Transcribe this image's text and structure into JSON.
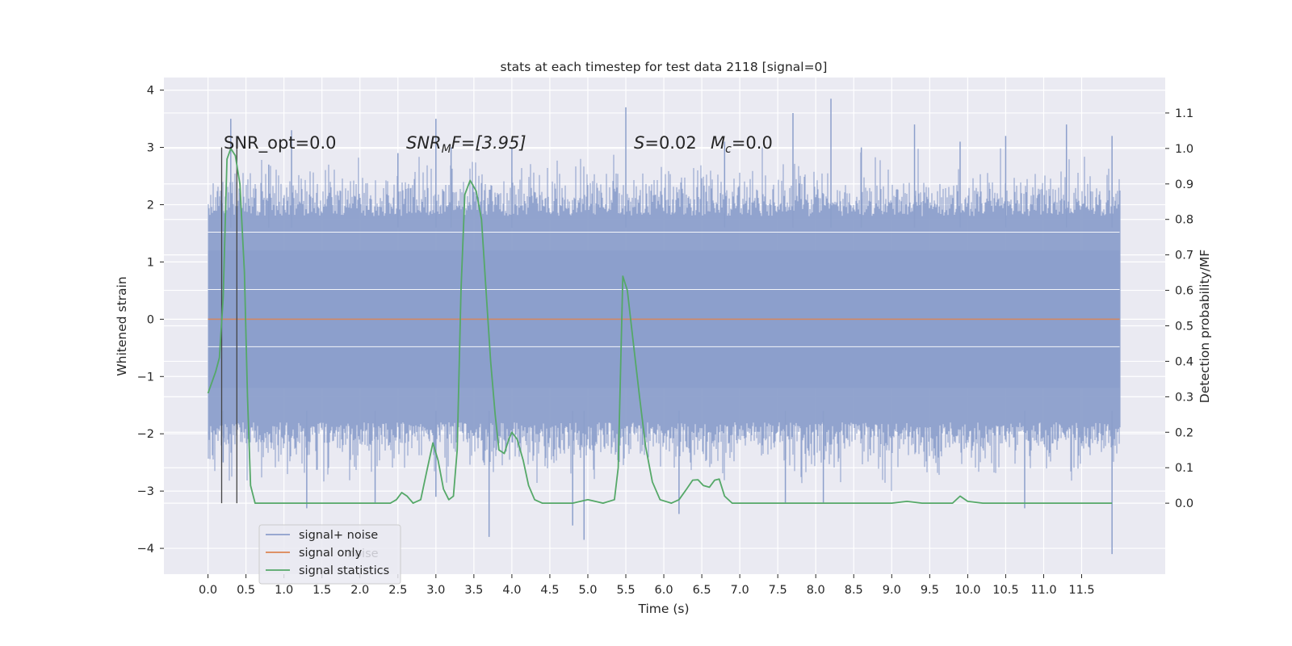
{
  "chart_data": {
    "type": "line",
    "title": "stats at each timestep for test data 2118 [signal=0]",
    "xlabel": "Time (s)",
    "ylabel_left": "Whitened strain",
    "ylabel_right": "Detection probability/MF",
    "xlim": [
      -0.58,
      12.6
    ],
    "ylim_left": [
      -4.45,
      4.22
    ],
    "ylim_right": [
      -0.2,
      1.2
    ],
    "xticks": [
      "0.0",
      "0.5",
      "1.0",
      "1.5",
      "2.0",
      "2.5",
      "3.0",
      "3.5",
      "4.0",
      "4.5",
      "5.0",
      "5.5",
      "6.0",
      "6.5",
      "7.0",
      "7.5",
      "8.0",
      "8.5",
      "9.0",
      "9.5",
      "10.0",
      "10.5",
      "11.0",
      "11.5"
    ],
    "yticks_left": [
      "4",
      "3",
      "2",
      "1",
      "0",
      "−1",
      "−2",
      "−3",
      "−4"
    ],
    "yticks_right": [
      "1.1",
      "1.0",
      "0.9",
      "0.8",
      "0.7",
      "0.6",
      "0.5",
      "0.4",
      "0.3",
      "0.2",
      "0.1",
      "0.0"
    ],
    "grid": true,
    "legend_position": "lower-left",
    "annotations": {
      "snr_opt": "SNR_opt=0.0",
      "snr_mf_main": "SNR",
      "snr_mf_sub": "M",
      "snr_mf_rest": "F=[3.95]",
      "s_main": "S",
      "s_rest": "=0.02",
      "mc_main": "M",
      "mc_sub": "c",
      "mc_rest": "=0.0"
    },
    "vertical_markers_x": [
      0.18,
      0.38
    ],
    "series": [
      {
        "name": "signal+ noise",
        "color": "#8c9fcb",
        "x_range": [
          0.0,
          12.0
        ],
        "typical_band": [
          -1.8,
          1.8
        ],
        "peak_up": [
          [
            0.3,
            3.5
          ],
          [
            0.8,
            2.7
          ],
          [
            1.1,
            3.3
          ],
          [
            2.5,
            2.9
          ],
          [
            3.0,
            3.5
          ],
          [
            3.2,
            3.0
          ],
          [
            4.0,
            3.0
          ],
          [
            5.5,
            3.7
          ],
          [
            6.8,
            3.1
          ],
          [
            7.7,
            3.6
          ],
          [
            8.2,
            3.85
          ],
          [
            8.6,
            3.0
          ],
          [
            9.3,
            3.4
          ],
          [
            9.9,
            3.1
          ],
          [
            10.5,
            3.2
          ],
          [
            11.3,
            3.4
          ],
          [
            11.9,
            3.2
          ]
        ],
        "peak_down": [
          [
            0.2,
            -2.5
          ],
          [
            1.3,
            -3.3
          ],
          [
            2.2,
            -3.2
          ],
          [
            3.0,
            -3.1
          ],
          [
            3.7,
            -3.8
          ],
          [
            4.8,
            -3.6
          ],
          [
            4.95,
            -3.85
          ],
          [
            6.2,
            -3.4
          ],
          [
            7.6,
            -3.2
          ],
          [
            8.1,
            -3.2
          ],
          [
            10.75,
            -3.3
          ],
          [
            11.9,
            -4.1
          ]
        ]
      },
      {
        "name": "signal only",
        "color": "#dd8452",
        "points": [
          [
            0.0,
            0.0
          ],
          [
            12.0,
            0.0
          ]
        ]
      },
      {
        "name": "signal statistics",
        "color": "#55a868",
        "axis": "right",
        "points": [
          [
            0.0,
            0.31
          ],
          [
            0.1,
            0.37
          ],
          [
            0.15,
            0.41
          ],
          [
            0.2,
            0.58
          ],
          [
            0.25,
            0.97
          ],
          [
            0.3,
            1.0
          ],
          [
            0.36,
            0.98
          ],
          [
            0.42,
            0.9
          ],
          [
            0.48,
            0.65
          ],
          [
            0.52,
            0.3
          ],
          [
            0.56,
            0.05
          ],
          [
            0.62,
            0.0
          ],
          [
            0.85,
            0.0
          ],
          [
            1.5,
            0.0
          ],
          [
            2.0,
            0.0
          ],
          [
            2.4,
            0.0
          ],
          [
            2.48,
            0.01
          ],
          [
            2.55,
            0.03
          ],
          [
            2.62,
            0.02
          ],
          [
            2.7,
            0.0
          ],
          [
            2.8,
            0.01
          ],
          [
            2.88,
            0.09
          ],
          [
            2.96,
            0.17
          ],
          [
            3.03,
            0.12
          ],
          [
            3.1,
            0.04
          ],
          [
            3.17,
            0.01
          ],
          [
            3.23,
            0.02
          ],
          [
            3.28,
            0.15
          ],
          [
            3.33,
            0.6
          ],
          [
            3.38,
            0.87
          ],
          [
            3.45,
            0.91
          ],
          [
            3.53,
            0.88
          ],
          [
            3.6,
            0.8
          ],
          [
            3.66,
            0.6
          ],
          [
            3.72,
            0.4
          ],
          [
            3.78,
            0.25
          ],
          [
            3.83,
            0.15
          ],
          [
            3.9,
            0.14
          ],
          [
            3.96,
            0.18
          ],
          [
            4.0,
            0.2
          ],
          [
            4.07,
            0.18
          ],
          [
            4.15,
            0.12
          ],
          [
            4.22,
            0.05
          ],
          [
            4.3,
            0.01
          ],
          [
            4.4,
            0.0
          ],
          [
            4.8,
            0.0
          ],
          [
            5.0,
            0.01
          ],
          [
            5.2,
            0.0
          ],
          [
            5.35,
            0.01
          ],
          [
            5.4,
            0.1
          ],
          [
            5.46,
            0.64
          ],
          [
            5.52,
            0.6
          ],
          [
            5.6,
            0.45
          ],
          [
            5.68,
            0.3
          ],
          [
            5.76,
            0.16
          ],
          [
            5.85,
            0.06
          ],
          [
            5.95,
            0.01
          ],
          [
            6.1,
            0.0
          ],
          [
            6.2,
            0.01
          ],
          [
            6.3,
            0.04
          ],
          [
            6.38,
            0.065
          ],
          [
            6.45,
            0.066
          ],
          [
            6.52,
            0.05
          ],
          [
            6.6,
            0.045
          ],
          [
            6.67,
            0.065
          ],
          [
            6.73,
            0.068
          ],
          [
            6.8,
            0.02
          ],
          [
            6.9,
            0.0
          ],
          [
            7.2,
            0.0
          ],
          [
            8.0,
            0.0
          ],
          [
            9.0,
            0.0
          ],
          [
            9.2,
            0.005
          ],
          [
            9.4,
            0.0
          ],
          [
            9.8,
            0.0
          ],
          [
            9.9,
            0.02
          ],
          [
            10.0,
            0.005
          ],
          [
            10.2,
            0.0
          ],
          [
            11.0,
            0.0
          ],
          [
            11.9,
            0.0
          ]
        ]
      }
    ]
  },
  "legend": {
    "items": [
      {
        "label": "signal+ noise",
        "color": "#8c9fcb"
      },
      {
        "label": "signal only",
        "color": "#dd8452"
      },
      {
        "label": "signal statistics",
        "color": "#55a868"
      }
    ],
    "ghost_text": "noise"
  }
}
